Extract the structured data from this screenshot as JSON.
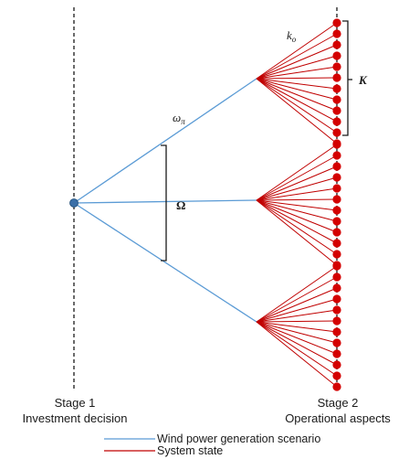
{
  "stage1": {
    "title": "Stage 1",
    "subtitle": "Investment decision"
  },
  "stage2": {
    "title": "Stage 2",
    "subtitle": "Operational aspects"
  },
  "symbols": {
    "scenario": "ω",
    "scenario_sub": "π",
    "system_state": "k",
    "system_state_sub": "o",
    "scenario_set": "Ω",
    "state_set": "K"
  },
  "legend": [
    {
      "label": "Wind power generation scenario",
      "color": "#5b9bd5"
    },
    {
      "label": "System state",
      "color": "#c00000"
    }
  ],
  "colors": {
    "scenario_line": "#5b9bd5",
    "state_line": "#c00000",
    "state_node": "#d40000",
    "root_node": "#3a6fa8",
    "guide_line": "#1a1a1a"
  },
  "structure": {
    "scenario_count": 3,
    "states_per_scenario": 12
  }
}
